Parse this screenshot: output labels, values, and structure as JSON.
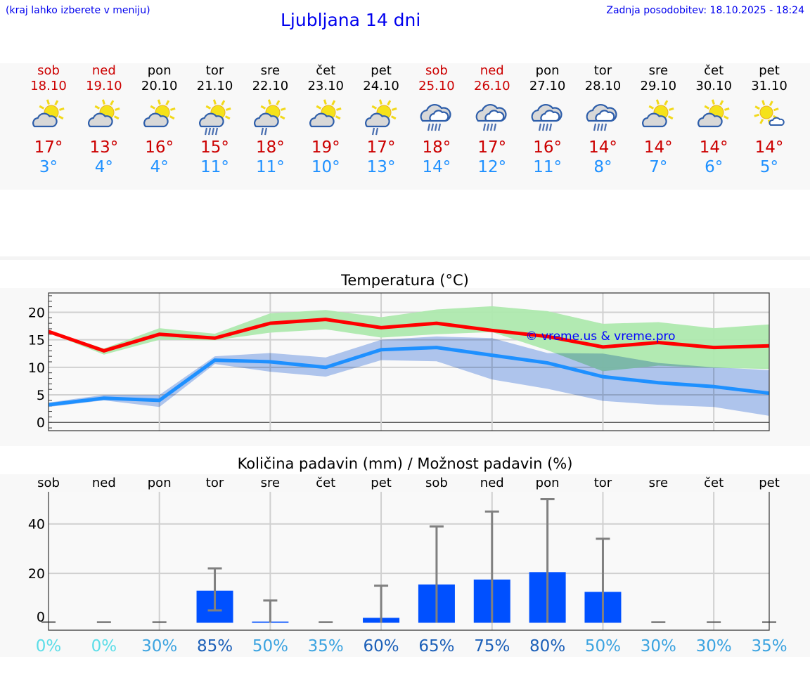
{
  "header": {
    "hint": "(kraj lahko izberete v meniju)",
    "title": "Ljubljana 14 dni",
    "updated": "Zadnja posodobitev: 18.10.2025 - 18:24"
  },
  "colors": {
    "weekend": "#cc0000",
    "max": "#ff0000",
    "min": "#1e90ff",
    "max_band": "#aee9ae",
    "min_band": "#aec6f2",
    "bar": "#0050ff",
    "error_bar": "#808080",
    "watermark": "#0000ff"
  },
  "days": [
    {
      "name": "sob",
      "date": "18.10",
      "weekend": true,
      "icon": "sun-cloud",
      "max": "17°",
      "min": "3°"
    },
    {
      "name": "ned",
      "date": "19.10",
      "weekend": true,
      "icon": "sun-cloud",
      "max": "13°",
      "min": "4°"
    },
    {
      "name": "pon",
      "date": "20.10",
      "weekend": false,
      "icon": "sun-cloud",
      "max": "16°",
      "min": "4°"
    },
    {
      "name": "tor",
      "date": "21.10",
      "weekend": false,
      "icon": "sun-cloud-rain",
      "max": "15°",
      "min": "11°"
    },
    {
      "name": "sre",
      "date": "22.10",
      "weekend": false,
      "icon": "sun-cloud-light-rain",
      "max": "18°",
      "min": "11°"
    },
    {
      "name": "čet",
      "date": "23.10",
      "weekend": false,
      "icon": "sun-cloud",
      "max": "19°",
      "min": "10°"
    },
    {
      "name": "pet",
      "date": "24.10",
      "weekend": false,
      "icon": "sun-cloud-light-rain",
      "max": "17°",
      "min": "13°"
    },
    {
      "name": "sob",
      "date": "25.10",
      "weekend": true,
      "icon": "cloud-rain",
      "max": "18°",
      "min": "14°"
    },
    {
      "name": "ned",
      "date": "26.10",
      "weekend": true,
      "icon": "cloud-rain",
      "max": "17°",
      "min": "12°"
    },
    {
      "name": "pon",
      "date": "27.10",
      "weekend": false,
      "icon": "cloud-rain",
      "max": "16°",
      "min": "11°"
    },
    {
      "name": "tor",
      "date": "28.10",
      "weekend": false,
      "icon": "cloud-rain",
      "max": "14°",
      "min": "8°"
    },
    {
      "name": "sre",
      "date": "29.10",
      "weekend": false,
      "icon": "sun-cloud",
      "max": "14°",
      "min": "7°"
    },
    {
      "name": "čet",
      "date": "30.10",
      "weekend": false,
      "icon": "sun-cloud",
      "max": "14°",
      "min": "6°"
    },
    {
      "name": "pet",
      "date": "31.10",
      "weekend": false,
      "icon": "sun-small-cloud",
      "max": "14°",
      "min": "5°"
    }
  ],
  "chart_data": [
    {
      "type": "line",
      "title": "Temperatura (°C)",
      "watermark": "© vreme.us & vreme.pro",
      "ylim": [
        -1.5,
        23.5
      ],
      "yticks": [
        0,
        5,
        10,
        15,
        20
      ],
      "grid": true,
      "x": [
        "18.10",
        "19.10",
        "20.10",
        "21.10",
        "22.10",
        "23.10",
        "24.10",
        "25.10",
        "26.10",
        "27.10",
        "28.10",
        "29.10",
        "30.10",
        "31.10"
      ],
      "series": [
        {
          "values": [
            16.5,
            13,
            16,
            15.3,
            18,
            18.7,
            17.2,
            18,
            16.7,
            15.6,
            13.7,
            14.5,
            13.6,
            13.9
          ],
          "band_upper": [
            16.7,
            13.4,
            17.1,
            16.1,
            19.8,
            20.4,
            19.1,
            20.5,
            21.1,
            20.2,
            17.9,
            18.2,
            17.1,
            17.8
          ],
          "band_lower": [
            16.3,
            12.3,
            15,
            14.9,
            16.3,
            16.9,
            15.4,
            16,
            16.4,
            13.1,
            9.3,
            10.3,
            9.9,
            9.7
          ]
        },
        {
          "values": [
            3.2,
            4.4,
            4,
            11.3,
            11,
            10,
            13.2,
            13.6,
            12.2,
            10.8,
            8.3,
            7.2,
            6.5,
            5.3
          ],
          "band_upper": [
            3.6,
            5,
            5,
            12,
            12.6,
            11.8,
            15,
            15.6,
            15.3,
            12.6,
            12.5,
            10.8,
            10,
            9.5
          ],
          "band_lower": [
            2.8,
            4,
            2.8,
            10.6,
            9.2,
            8.3,
            11.3,
            11.1,
            7.8,
            6.1,
            3.9,
            3.2,
            2.8,
            1.2
          ]
        }
      ]
    },
    {
      "type": "bar",
      "title": "Količina padavin (mm) / Možnost padavin (%)",
      "ylim": [
        -3,
        53
      ],
      "yticks": [
        0,
        20,
        40
      ],
      "grid": true,
      "categories": [
        "sob",
        "ned",
        "pon",
        "tor",
        "sre",
        "čet",
        "pet",
        "sob",
        "ned",
        "pon",
        "tor",
        "sre",
        "čet",
        "pet"
      ],
      "values": [
        0,
        0,
        0,
        13,
        0.5,
        0,
        2,
        15.5,
        17.5,
        20.5,
        12.5,
        0,
        0,
        0
      ],
      "error_low": [
        0,
        0,
        0,
        5,
        0,
        0,
        0,
        0,
        0,
        0,
        0,
        0,
        0,
        0
      ],
      "error_high": [
        0,
        0,
        0,
        22,
        9,
        0,
        15,
        39,
        45,
        50,
        34,
        0,
        0,
        0
      ],
      "probability": [
        "0%",
        "0%",
        "30%",
        "85%",
        "50%",
        "35%",
        "60%",
        "65%",
        "75%",
        "80%",
        "50%",
        "30%",
        "30%",
        "35%"
      ]
    }
  ]
}
